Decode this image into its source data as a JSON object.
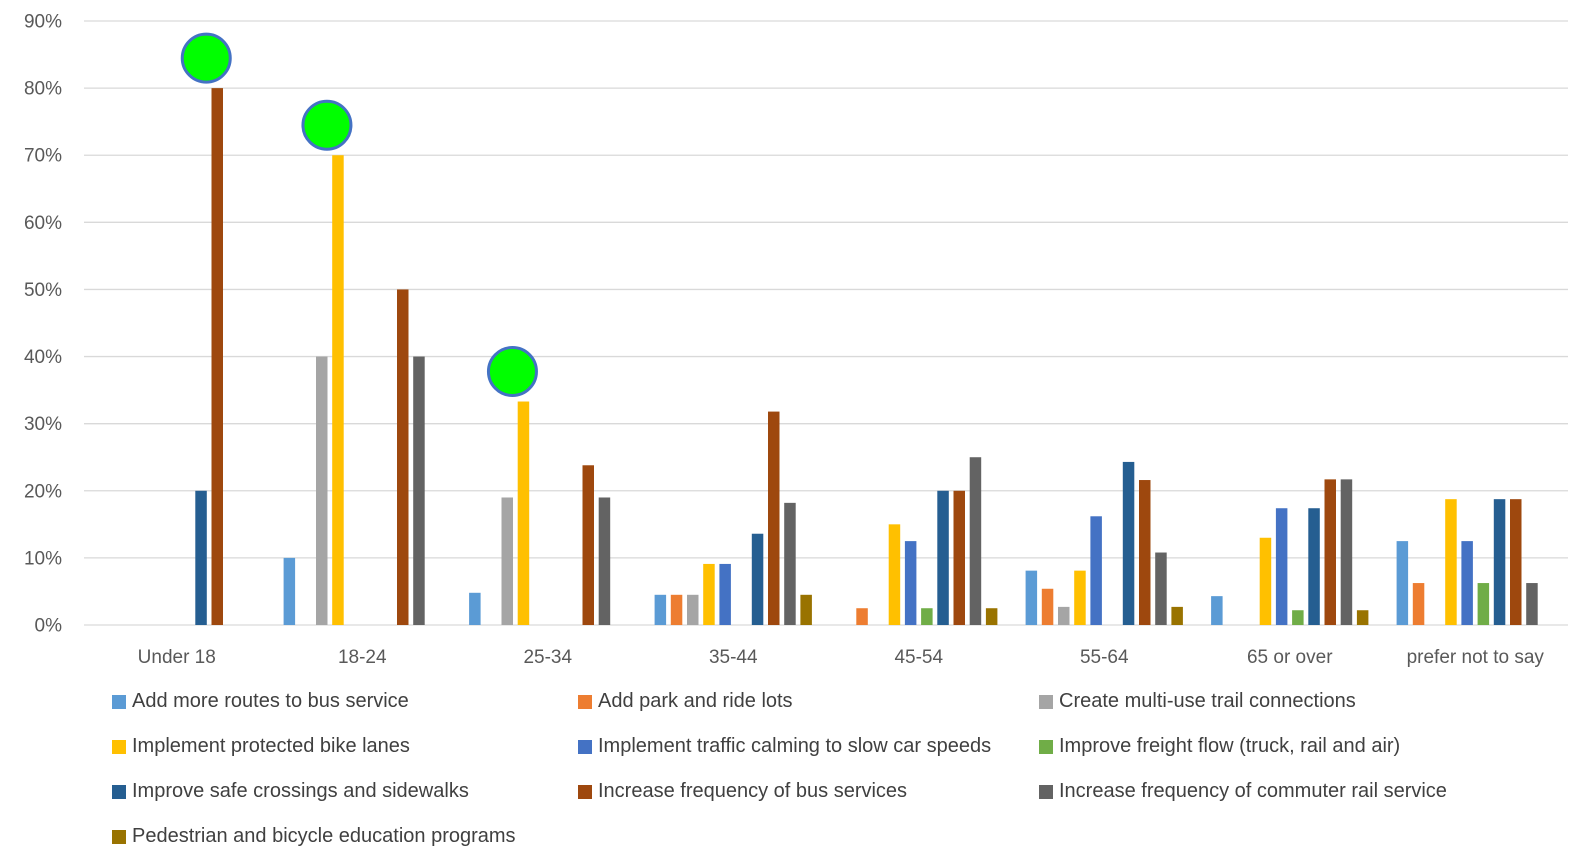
{
  "chart_data": {
    "type": "bar",
    "categories": [
      "Under 18",
      "18-24",
      "25-34",
      "35-44",
      "45-54",
      "55-64",
      "65 or over",
      "prefer not to say"
    ],
    "y_ticks": [
      "0%",
      "10%",
      "20%",
      "30%",
      "40%",
      "50%",
      "60%",
      "70%",
      "80%",
      "90%"
    ],
    "ylim": [
      0,
      90
    ],
    "grid": true,
    "legend_position": "bottom",
    "series": [
      {
        "name": "Add more routes to bus service",
        "color": "#5B9BD5",
        "values": [
          0,
          10,
          4.8,
          4.5,
          0,
          8.1,
          4.3,
          12.5
        ]
      },
      {
        "name": "Add park and ride lots",
        "color": "#ED7D31",
        "values": [
          0,
          0,
          0,
          4.5,
          2.5,
          5.4,
          0,
          6.25
        ]
      },
      {
        "name": "Create multi-use trail connections",
        "color": "#A5A5A5",
        "values": [
          0,
          40,
          19,
          4.5,
          0,
          2.7,
          0,
          0
        ]
      },
      {
        "name": "Implement protected bike lanes",
        "color": "#FFC000",
        "values": [
          0,
          70,
          33.3,
          9.1,
          15,
          8.1,
          13,
          18.75
        ]
      },
      {
        "name": "Implement traffic calming to slow car speeds",
        "color": "#4472C4",
        "values": [
          0,
          0,
          0,
          9.1,
          12.5,
          16.2,
          17.4,
          12.5
        ]
      },
      {
        "name": "Improve freight flow (truck, rail and air)",
        "color": "#70AD47",
        "values": [
          0,
          0,
          0,
          0,
          2.5,
          0,
          2.2,
          6.25
        ]
      },
      {
        "name": "Improve safe crossings and sidewalks",
        "color": "#255E91",
        "values": [
          20,
          0,
          0,
          13.6,
          20,
          24.3,
          17.4,
          18.75
        ]
      },
      {
        "name": "Increase frequency of bus services",
        "color": "#9E480E",
        "values": [
          80,
          50,
          23.8,
          31.8,
          20,
          21.6,
          21.7,
          18.75
        ]
      },
      {
        "name": "Increase frequency of commuter rail service",
        "color": "#636363",
        "values": [
          0,
          40,
          19,
          18.2,
          25,
          10.8,
          21.7,
          6.25
        ]
      },
      {
        "name": "Pedestrian and bicycle education programs",
        "color": "#997300",
        "values": [
          0,
          0,
          0,
          4.5,
          2.5,
          2.7,
          2.2,
          0
        ]
      }
    ],
    "annotations": [
      {
        "type": "green-circle-marker",
        "category": "Under 18",
        "series": "Increase frequency of bus services"
      },
      {
        "type": "green-circle-marker",
        "category": "18-24",
        "series": "Implement protected bike lanes"
      },
      {
        "type": "green-circle-marker",
        "category": "25-34",
        "series": "Implement protected bike lanes"
      }
    ],
    "colors": {
      "grid": "#D9D9D9",
      "axis_text": "#595959",
      "marker_fill": "#00FF00",
      "marker_stroke": "#4472C4"
    }
  }
}
